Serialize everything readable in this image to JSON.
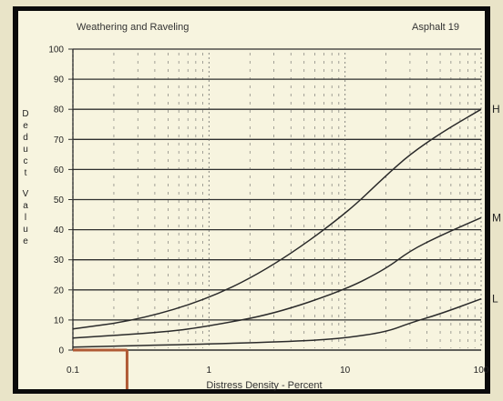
{
  "chart_data": {
    "type": "line",
    "title": "Weathering and Raveling",
    "subtitle": "Asphalt 19",
    "xlabel": "Distress Density - Percent",
    "ylabel": "Deduct Value",
    "xscale": "log",
    "xlim": [
      0.1,
      100
    ],
    "ylim": [
      0,
      100
    ],
    "x_ticks": [
      0.1,
      1,
      10,
      100
    ],
    "x_tick_labels": [
      "0.1",
      "1",
      "10",
      "100"
    ],
    "y_ticks": [
      0,
      10,
      20,
      30,
      40,
      50,
      60,
      70,
      80,
      90,
      100
    ],
    "y_tick_labels": [
      "0",
      "10",
      "20",
      "30",
      "40",
      "50",
      "60",
      "70",
      "80",
      "90",
      "100"
    ],
    "grid": true,
    "series": [
      {
        "name": "H",
        "x": [
          0.1,
          0.3,
          1,
          3,
          10,
          20,
          30,
          50,
          100
        ],
        "y": [
          7,
          10,
          17,
          28,
          45,
          58,
          65,
          72,
          80
        ]
      },
      {
        "name": "M",
        "x": [
          0.1,
          0.5,
          1,
          3,
          10,
          20,
          30,
          50,
          100
        ],
        "y": [
          4,
          6,
          8,
          12,
          20,
          27,
          33,
          38,
          44
        ]
      },
      {
        "name": "L",
        "x": [
          0.1,
          1,
          5,
          10,
          20,
          30,
          50,
          100
        ],
        "y": [
          1,
          2,
          3,
          4,
          6,
          9,
          12,
          17
        ]
      }
    ],
    "highlight": {
      "x": 0.25,
      "y": 0
    },
    "colors": {
      "highlight": "#b05a35",
      "curve": "#2a2a2a",
      "grid": "#2f2f2f"
    }
  }
}
